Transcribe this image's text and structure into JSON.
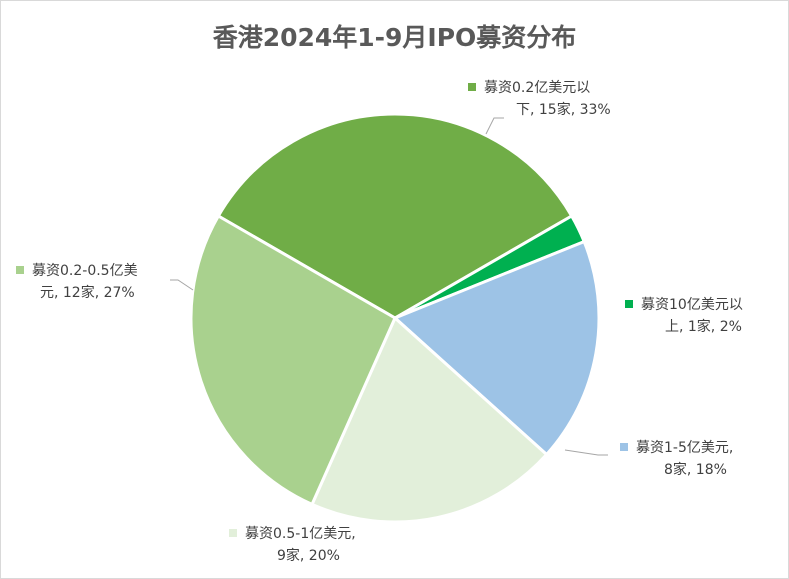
{
  "chart_data": {
    "type": "pie",
    "title": "香港2024年1-9月IPO募资分布",
    "slices": [
      {
        "label_line1": "募资0.2亿美元以",
        "label_line2": "下, 15家, 33%",
        "count": 15,
        "percent": 33,
        "color": "#70ad47"
      },
      {
        "label_line1": "募资10亿美元以",
        "label_line2": "上, 1家, 2%",
        "count": 1,
        "percent": 2,
        "color": "#00b050"
      },
      {
        "label_line1": "募资1-5亿美元,",
        "label_line2": "8家, 18%",
        "count": 8,
        "percent": 18,
        "color": "#9dc3e6"
      },
      {
        "label_line1": "募资0.5-1亿美元,",
        "label_line2": "9家, 20%",
        "count": 9,
        "percent": 20,
        "color": "#e2efda"
      },
      {
        "label_line1": "募资0.2-0.5亿美",
        "label_line2": "元, 12家, 27%",
        "count": 12,
        "percent": 27,
        "color": "#a9d18e"
      }
    ]
  }
}
